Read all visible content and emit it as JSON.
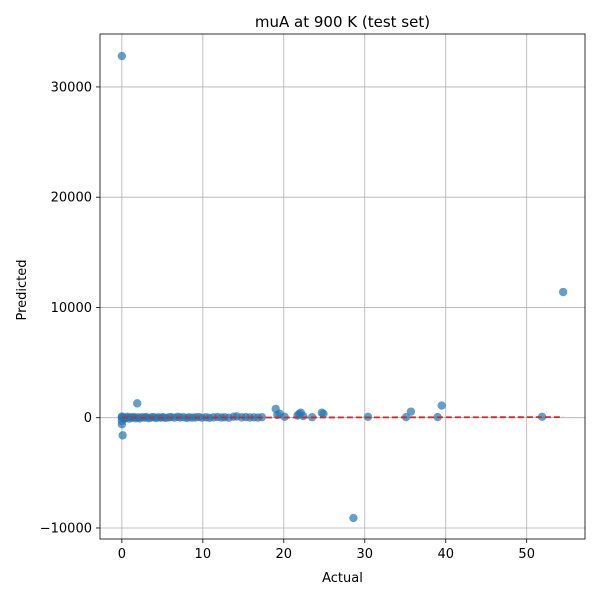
{
  "chart_data": {
    "type": "scatter",
    "title": "muA at 900 K (test set)",
    "xlabel": "Actual",
    "ylabel": "Predicted",
    "xlim": [
      -2.7,
      57.2
    ],
    "ylim": [
      -11000,
      34800
    ],
    "grid": true,
    "xticks": [
      0,
      10,
      20,
      30,
      40,
      50
    ],
    "yticks": [
      -10000,
      0,
      10000,
      20000,
      30000
    ],
    "xtick_labels": [
      "0",
      "10",
      "20",
      "30",
      "40",
      "50"
    ],
    "ytick_labels": [
      "−10000",
      "0",
      "10000",
      "20000",
      "30000"
    ],
    "point_color": "#1f77b4",
    "reference_line": {
      "x": [
        0,
        54.5
      ],
      "y": [
        0,
        54.5
      ],
      "color": "#d62728",
      "style": "dashed"
    },
    "points": [
      {
        "x": 0.0,
        "y": 32800
      },
      {
        "x": 54.5,
        "y": 11400
      },
      {
        "x": 28.6,
        "y": -9100
      },
      {
        "x": 0.1,
        "y": -1600
      },
      {
        "x": 0.0,
        "y": -600
      },
      {
        "x": 0.0,
        "y": -300
      },
      {
        "x": 0.0,
        "y": 0
      },
      {
        "x": 0.0,
        "y": 100
      },
      {
        "x": 0.1,
        "y": 50
      },
      {
        "x": 0.3,
        "y": -100
      },
      {
        "x": 0.5,
        "y": 0
      },
      {
        "x": 0.7,
        "y": 80
      },
      {
        "x": 0.9,
        "y": -80
      },
      {
        "x": 1.1,
        "y": 40
      },
      {
        "x": 1.3,
        "y": 0
      },
      {
        "x": 1.5,
        "y": 60
      },
      {
        "x": 1.7,
        "y": -50
      },
      {
        "x": 1.9,
        "y": 1300
      },
      {
        "x": 2.0,
        "y": 30
      },
      {
        "x": 2.2,
        "y": -60
      },
      {
        "x": 2.5,
        "y": 50
      },
      {
        "x": 2.8,
        "y": 0
      },
      {
        "x": 3.0,
        "y": 70
      },
      {
        "x": 3.3,
        "y": -40
      },
      {
        "x": 3.6,
        "y": 20
      },
      {
        "x": 3.9,
        "y": 60
      },
      {
        "x": 4.2,
        "y": -30
      },
      {
        "x": 4.5,
        "y": 40
      },
      {
        "x": 4.8,
        "y": 0
      },
      {
        "x": 5.1,
        "y": 50
      },
      {
        "x": 5.4,
        "y": -20
      },
      {
        "x": 5.8,
        "y": 30
      },
      {
        "x": 6.1,
        "y": 60
      },
      {
        "x": 6.5,
        "y": 0
      },
      {
        "x": 6.9,
        "y": 80
      },
      {
        "x": 7.2,
        "y": 20
      },
      {
        "x": 7.6,
        "y": 50
      },
      {
        "x": 8.0,
        "y": -20
      },
      {
        "x": 8.3,
        "y": 40
      },
      {
        "x": 8.7,
        "y": 10
      },
      {
        "x": 9.1,
        "y": 30
      },
      {
        "x": 9.5,
        "y": 60
      },
      {
        "x": 9.9,
        "y": 0
      },
      {
        "x": 10.4,
        "y": 40
      },
      {
        "x": 10.8,
        "y": -10
      },
      {
        "x": 11.3,
        "y": 30
      },
      {
        "x": 11.8,
        "y": 60
      },
      {
        "x": 12.3,
        "y": 20
      },
      {
        "x": 12.7,
        "y": 40
      },
      {
        "x": 13.2,
        "y": 0
      },
      {
        "x": 13.8,
        "y": 90
      },
      {
        "x": 14.2,
        "y": 120
      },
      {
        "x": 14.8,
        "y": 30
      },
      {
        "x": 15.3,
        "y": 60
      },
      {
        "x": 15.8,
        "y": 20
      },
      {
        "x": 16.3,
        "y": 40
      },
      {
        "x": 16.8,
        "y": 10
      },
      {
        "x": 17.3,
        "y": 50
      },
      {
        "x": 19.0,
        "y": 800
      },
      {
        "x": 19.2,
        "y": 250
      },
      {
        "x": 19.5,
        "y": 350
      },
      {
        "x": 20.1,
        "y": 80
      },
      {
        "x": 21.7,
        "y": 200
      },
      {
        "x": 21.9,
        "y": 350
      },
      {
        "x": 22.1,
        "y": 450
      },
      {
        "x": 22.4,
        "y": 150
      },
      {
        "x": 23.5,
        "y": 50
      },
      {
        "x": 24.7,
        "y": 450
      },
      {
        "x": 24.9,
        "y": 350
      },
      {
        "x": 30.4,
        "y": 80
      },
      {
        "x": 35.1,
        "y": 50
      },
      {
        "x": 35.7,
        "y": 550
      },
      {
        "x": 39.0,
        "y": 60
      },
      {
        "x": 39.5,
        "y": 1100
      },
      {
        "x": 51.9,
        "y": 80
      }
    ]
  }
}
